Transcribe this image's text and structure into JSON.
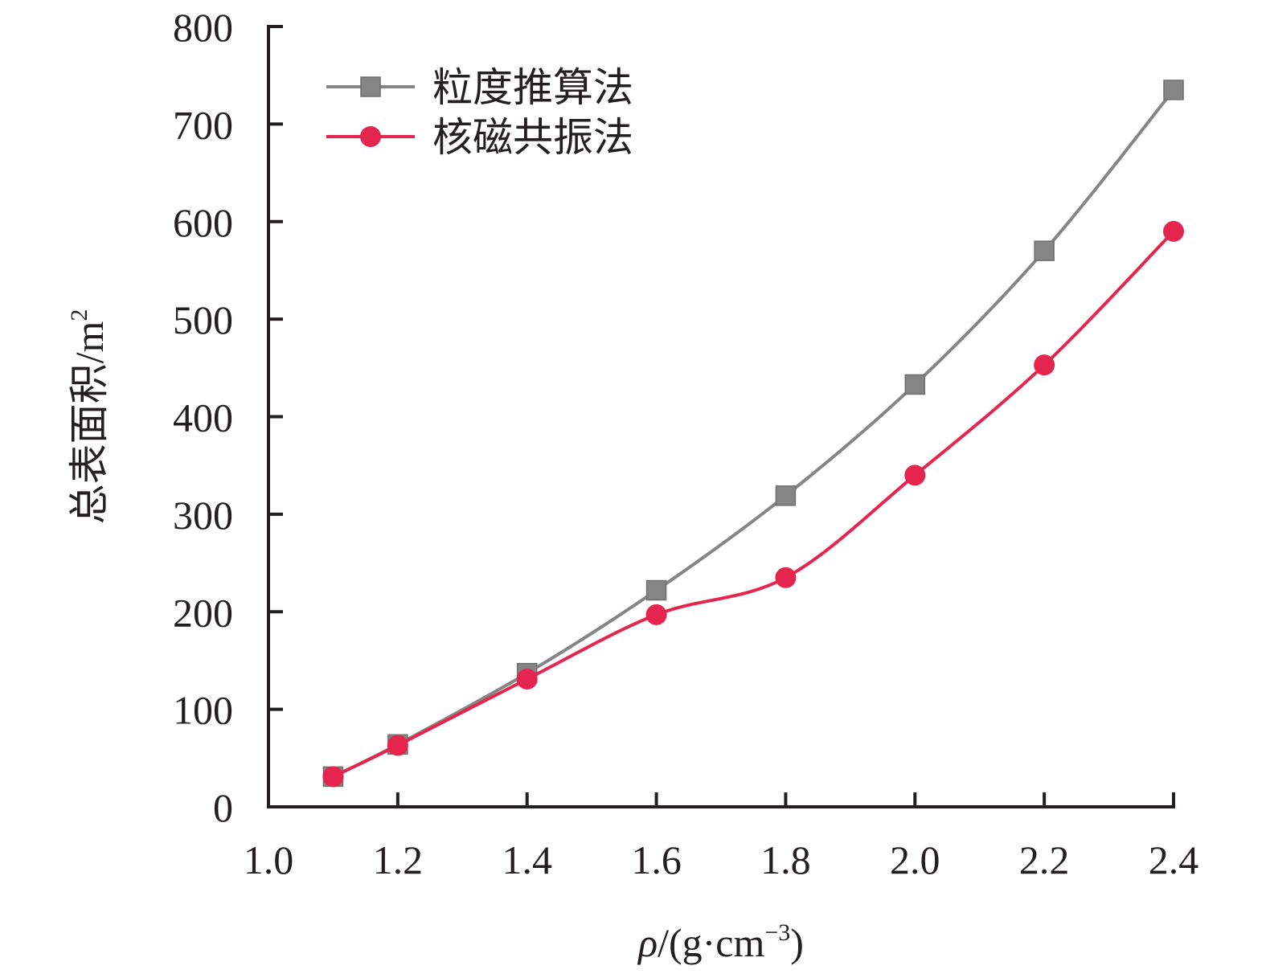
{
  "chart_data": {
    "type": "line",
    "xlabel": {
      "symbol": "ρ",
      "unit_prefix": "/(g·cm",
      "unit_exponent": "−3",
      "unit_suffix": ")"
    },
    "ylabel": {
      "text": "总表面积/m",
      "exponent": "2"
    },
    "xlim": [
      1.0,
      2.4
    ],
    "ylim": [
      0,
      800
    ],
    "xticks": [
      1.0,
      1.2,
      1.4,
      1.6,
      1.8,
      2.0,
      2.2,
      2.4
    ],
    "xtick_labels": [
      "1.0",
      "1.2",
      "1.4",
      "1.6",
      "1.8",
      "2.0",
      "2.2",
      "2.4"
    ],
    "yticks": [
      0,
      100,
      200,
      300,
      400,
      500,
      600,
      700,
      800
    ],
    "ytick_labels": [
      "0",
      "100",
      "200",
      "300",
      "400",
      "500",
      "600",
      "700",
      "800"
    ],
    "grid": false,
    "legend_position": "top-left",
    "series": [
      {
        "name": "粒度推算法",
        "color": "#858585",
        "marker": "square",
        "x": [
          1.1,
          1.2,
          1.4,
          1.6,
          1.8,
          2.0,
          2.2,
          2.4
        ],
        "y": [
          31,
          64,
          137,
          222,
          319,
          433,
          570,
          735
        ]
      },
      {
        "name": "核磁共振法",
        "color": "#e5254d",
        "marker": "circle",
        "x": [
          1.1,
          1.2,
          1.4,
          1.6,
          1.8,
          2.0,
          2.2,
          2.4
        ],
        "y": [
          31,
          63,
          131,
          197,
          235,
          340,
          453,
          590
        ]
      }
    ]
  }
}
